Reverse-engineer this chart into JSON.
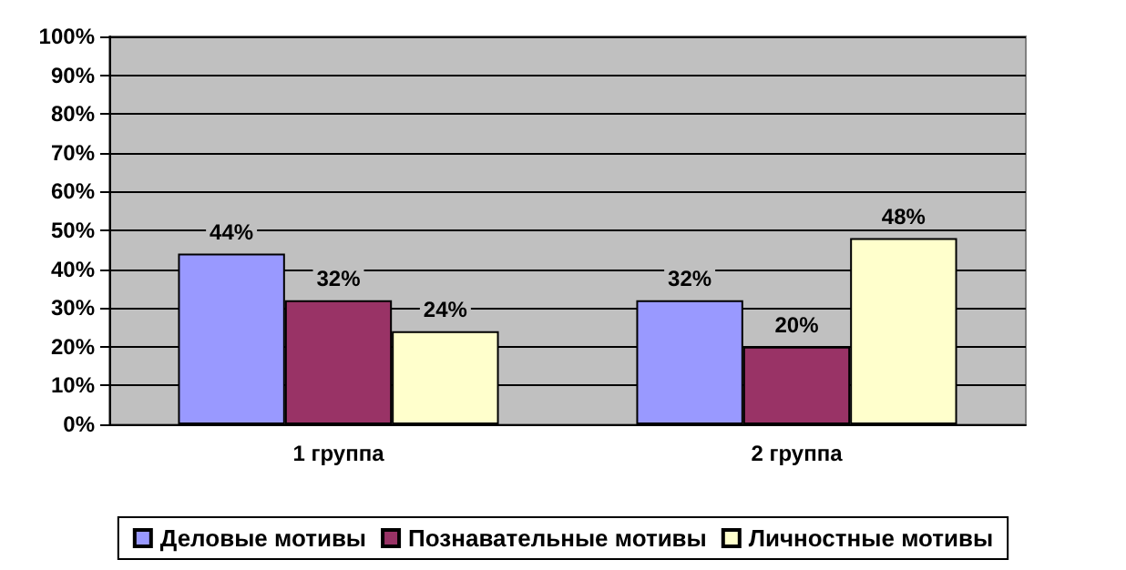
{
  "chart_data": {
    "type": "bar",
    "categories": [
      "1 группа",
      "2 группа"
    ],
    "series": [
      {
        "name": "Деловые мотивы",
        "color": "#9999ff",
        "values": [
          44,
          32
        ],
        "value_labels": [
          "44%",
          "32%"
        ]
      },
      {
        "name": "Познавательные мотивы",
        "color": "#993366",
        "values": [
          32,
          20
        ],
        "value_labels": [
          "32%",
          "20%"
        ]
      },
      {
        "name": "Личностные мотивы",
        "color": "#ffffcc",
        "values": [
          24,
          48
        ],
        "value_labels": [
          "24%",
          "48%"
        ]
      }
    ],
    "ylim": [
      0,
      100
    ],
    "yticks": [
      {
        "value": 0,
        "label": "0%"
      },
      {
        "value": 10,
        "label": "10%"
      },
      {
        "value": 20,
        "label": "20%"
      },
      {
        "value": 30,
        "label": "30%"
      },
      {
        "value": 40,
        "label": "40%"
      },
      {
        "value": 50,
        "label": "50%"
      },
      {
        "value": 60,
        "label": "60%"
      },
      {
        "value": 70,
        "label": "70%"
      },
      {
        "value": 80,
        "label": "80%"
      },
      {
        "value": 90,
        "label": "90%"
      },
      {
        "value": 100,
        "label": "100%"
      }
    ],
    "grid": "y",
    "legend": "bottom"
  }
}
